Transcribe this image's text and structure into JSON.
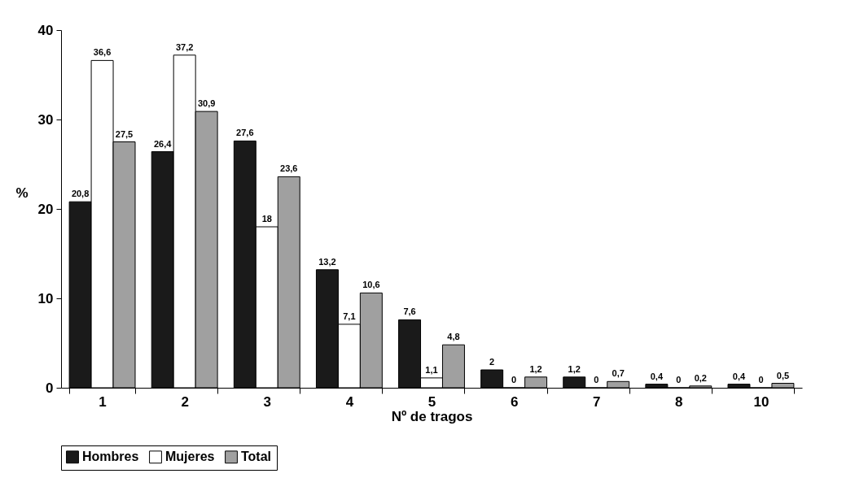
{
  "chart_data": {
    "type": "bar",
    "xlabel": "Nº de tragos",
    "ylabel": "%",
    "categories": [
      "1",
      "2",
      "3",
      "4",
      "5",
      "6",
      "7",
      "8",
      "10"
    ],
    "ylim": [
      0,
      40
    ],
    "yticks": [
      0,
      10,
      20,
      30,
      40
    ],
    "grid": false,
    "legend": "bottom",
    "series": [
      {
        "name": "Hombres",
        "color": "#1a1a1a",
        "values": [
          20.8,
          26.4,
          27.6,
          13.2,
          7.6,
          2,
          1.2,
          0.4,
          0.4
        ],
        "value_labels": [
          "20,8",
          "26,4",
          "27,6",
          "13,2",
          "7,6",
          "2",
          "1,2",
          "0,4",
          "0,4"
        ]
      },
      {
        "name": "Mujeres",
        "color": "#ffffff",
        "values": [
          36.6,
          37.2,
          18,
          7.1,
          1.1,
          0,
          0,
          0,
          0
        ],
        "value_labels": [
          "36,6",
          "37,2",
          "18",
          "7,1",
          "1,1",
          "0",
          "0",
          "0",
          "0"
        ]
      },
      {
        "name": "Total",
        "color": "#a0a0a0",
        "values": [
          27.5,
          30.9,
          23.6,
          10.6,
          4.8,
          1.2,
          0.7,
          0.2,
          0.5
        ],
        "value_labels": [
          "27,5",
          "30,9",
          "23,6",
          "10,6",
          "4,8",
          "1,2",
          "0,7",
          "0,2",
          "0,5"
        ]
      }
    ]
  }
}
